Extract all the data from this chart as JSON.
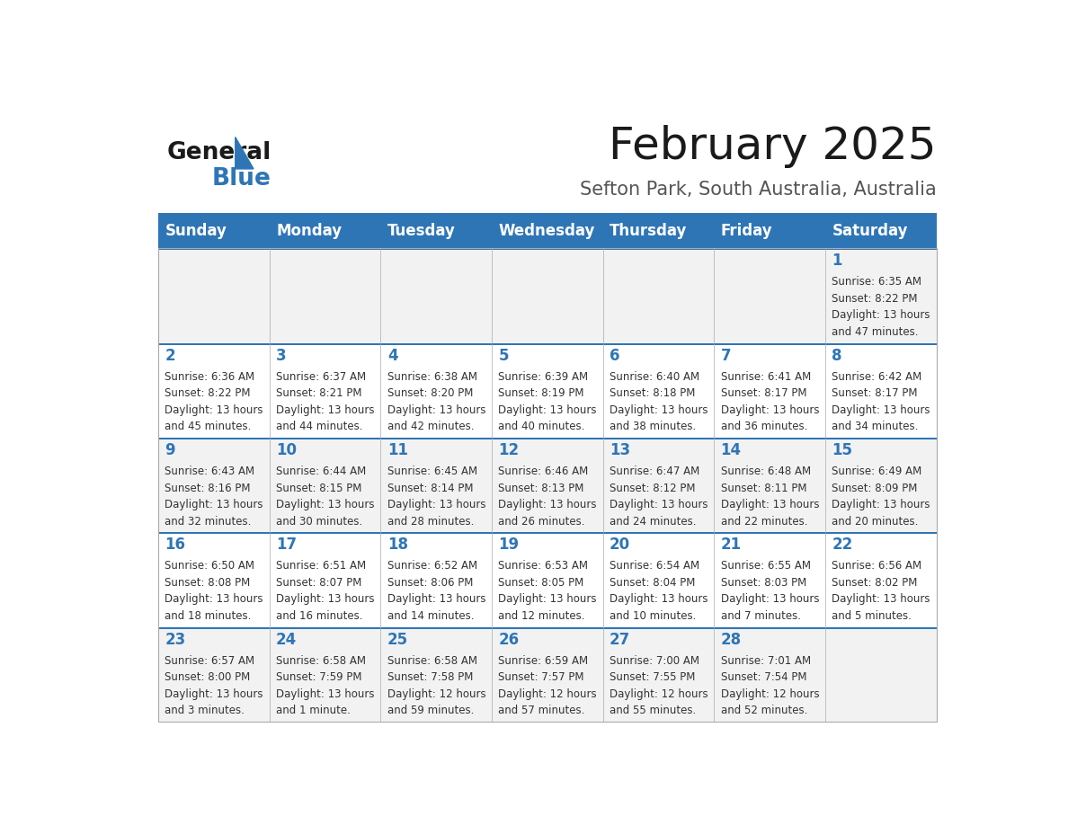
{
  "title": "February 2025",
  "subtitle": "Sefton Park, South Australia, Australia",
  "header_color": "#2E75B6",
  "header_text_color": "#FFFFFF",
  "day_names": [
    "Sunday",
    "Monday",
    "Tuesday",
    "Wednesday",
    "Thursday",
    "Friday",
    "Saturday"
  ],
  "bg_color": "#FFFFFF",
  "cell_bg_even": "#F2F2F2",
  "cell_bg_odd": "#FFFFFF",
  "separator_color": "#2E75B6",
  "text_color": "#333333",
  "number_color": "#2E75B6",
  "weeks": [
    [
      {
        "day": "",
        "info": ""
      },
      {
        "day": "",
        "info": ""
      },
      {
        "day": "",
        "info": ""
      },
      {
        "day": "",
        "info": ""
      },
      {
        "day": "",
        "info": ""
      },
      {
        "day": "",
        "info": ""
      },
      {
        "day": "1",
        "info": "Sunrise: 6:35 AM\nSunset: 8:22 PM\nDaylight: 13 hours\nand 47 minutes."
      }
    ],
    [
      {
        "day": "2",
        "info": "Sunrise: 6:36 AM\nSunset: 8:22 PM\nDaylight: 13 hours\nand 45 minutes."
      },
      {
        "day": "3",
        "info": "Sunrise: 6:37 AM\nSunset: 8:21 PM\nDaylight: 13 hours\nand 44 minutes."
      },
      {
        "day": "4",
        "info": "Sunrise: 6:38 AM\nSunset: 8:20 PM\nDaylight: 13 hours\nand 42 minutes."
      },
      {
        "day": "5",
        "info": "Sunrise: 6:39 AM\nSunset: 8:19 PM\nDaylight: 13 hours\nand 40 minutes."
      },
      {
        "day": "6",
        "info": "Sunrise: 6:40 AM\nSunset: 8:18 PM\nDaylight: 13 hours\nand 38 minutes."
      },
      {
        "day": "7",
        "info": "Sunrise: 6:41 AM\nSunset: 8:17 PM\nDaylight: 13 hours\nand 36 minutes."
      },
      {
        "day": "8",
        "info": "Sunrise: 6:42 AM\nSunset: 8:17 PM\nDaylight: 13 hours\nand 34 minutes."
      }
    ],
    [
      {
        "day": "9",
        "info": "Sunrise: 6:43 AM\nSunset: 8:16 PM\nDaylight: 13 hours\nand 32 minutes."
      },
      {
        "day": "10",
        "info": "Sunrise: 6:44 AM\nSunset: 8:15 PM\nDaylight: 13 hours\nand 30 minutes."
      },
      {
        "day": "11",
        "info": "Sunrise: 6:45 AM\nSunset: 8:14 PM\nDaylight: 13 hours\nand 28 minutes."
      },
      {
        "day": "12",
        "info": "Sunrise: 6:46 AM\nSunset: 8:13 PM\nDaylight: 13 hours\nand 26 minutes."
      },
      {
        "day": "13",
        "info": "Sunrise: 6:47 AM\nSunset: 8:12 PM\nDaylight: 13 hours\nand 24 minutes."
      },
      {
        "day": "14",
        "info": "Sunrise: 6:48 AM\nSunset: 8:11 PM\nDaylight: 13 hours\nand 22 minutes."
      },
      {
        "day": "15",
        "info": "Sunrise: 6:49 AM\nSunset: 8:09 PM\nDaylight: 13 hours\nand 20 minutes."
      }
    ],
    [
      {
        "day": "16",
        "info": "Sunrise: 6:50 AM\nSunset: 8:08 PM\nDaylight: 13 hours\nand 18 minutes."
      },
      {
        "day": "17",
        "info": "Sunrise: 6:51 AM\nSunset: 8:07 PM\nDaylight: 13 hours\nand 16 minutes."
      },
      {
        "day": "18",
        "info": "Sunrise: 6:52 AM\nSunset: 8:06 PM\nDaylight: 13 hours\nand 14 minutes."
      },
      {
        "day": "19",
        "info": "Sunrise: 6:53 AM\nSunset: 8:05 PM\nDaylight: 13 hours\nand 12 minutes."
      },
      {
        "day": "20",
        "info": "Sunrise: 6:54 AM\nSunset: 8:04 PM\nDaylight: 13 hours\nand 10 minutes."
      },
      {
        "day": "21",
        "info": "Sunrise: 6:55 AM\nSunset: 8:03 PM\nDaylight: 13 hours\nand 7 minutes."
      },
      {
        "day": "22",
        "info": "Sunrise: 6:56 AM\nSunset: 8:02 PM\nDaylight: 13 hours\nand 5 minutes."
      }
    ],
    [
      {
        "day": "23",
        "info": "Sunrise: 6:57 AM\nSunset: 8:00 PM\nDaylight: 13 hours\nand 3 minutes."
      },
      {
        "day": "24",
        "info": "Sunrise: 6:58 AM\nSunset: 7:59 PM\nDaylight: 13 hours\nand 1 minute."
      },
      {
        "day": "25",
        "info": "Sunrise: 6:58 AM\nSunset: 7:58 PM\nDaylight: 12 hours\nand 59 minutes."
      },
      {
        "day": "26",
        "info": "Sunrise: 6:59 AM\nSunset: 7:57 PM\nDaylight: 12 hours\nand 57 minutes."
      },
      {
        "day": "27",
        "info": "Sunrise: 7:00 AM\nSunset: 7:55 PM\nDaylight: 12 hours\nand 55 minutes."
      },
      {
        "day": "28",
        "info": "Sunrise: 7:01 AM\nSunset: 7:54 PM\nDaylight: 12 hours\nand 52 minutes."
      },
      {
        "day": "",
        "info": ""
      }
    ]
  ],
  "logo_text1": "General",
  "logo_text2": "Blue"
}
